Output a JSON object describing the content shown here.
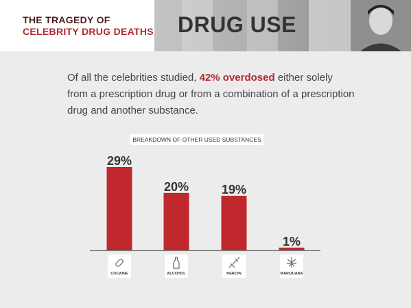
{
  "header": {
    "brand_line1": "THE TRAGEDY OF",
    "brand_line2": "CELEBRITY DRUG DEATHS",
    "title": "DRUG USE"
  },
  "intro": {
    "before": "Of all the celebrities studied, ",
    "highlight": "42% overdosed",
    "after": " either solely from a prescription drug or from a combination of a prescription drug and another substance."
  },
  "colors": {
    "accent": "#c0282d",
    "background": "#ececec",
    "text": "#444444"
  },
  "chart_data": {
    "type": "bar",
    "title": "BREAKDOWN OF OTHER USED SUBSTANCES",
    "categories": [
      "COCAINE",
      "ALCOHOL",
      "HEROIN",
      "MARIJUANA"
    ],
    "values": [
      29,
      20,
      19,
      1
    ],
    "value_labels": [
      "29%",
      "20%",
      "19%",
      "1%"
    ],
    "icons": [
      "pill-icon",
      "bottle-icon",
      "syringe-icon",
      "leaf-icon"
    ],
    "ylim": [
      0,
      30
    ],
    "grid": false,
    "xlabel": "",
    "ylabel": ""
  }
}
